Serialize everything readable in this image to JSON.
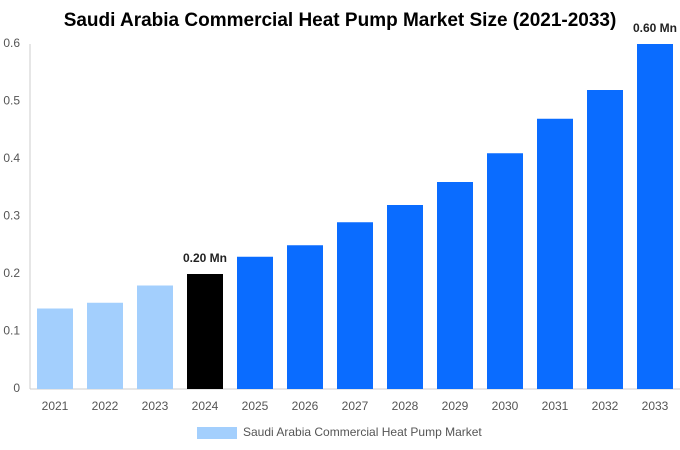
{
  "chart_data": {
    "type": "bar",
    "title": "Saudi Arabia Commercial Heat Pump Market Size (2021-2033)",
    "categories": [
      "2021",
      "2022",
      "2023",
      "2024",
      "2025",
      "2026",
      "2027",
      "2028",
      "2029",
      "2030",
      "2031",
      "2032",
      "2033"
    ],
    "series": [
      {
        "name": "Saudi Arabia Commercial Heat Pump Market",
        "color": "#a3cffd",
        "colors": [
          "#a3cffd",
          "#a3cffd",
          "#a3cffd",
          "#000000",
          "#0a6cff",
          "#0a6cff",
          "#0a6cff",
          "#0a6cff",
          "#0a6cff",
          "#0a6cff",
          "#0a6cff",
          "#0a6cff",
          "#0a6cff"
        ],
        "values": [
          0.14,
          0.15,
          0.18,
          0.2,
          0.23,
          0.25,
          0.29,
          0.32,
          0.36,
          0.41,
          0.47,
          0.52,
          0.6
        ],
        "value_labels": [
          null,
          null,
          null,
          "0.20 Mn",
          null,
          null,
          null,
          null,
          null,
          null,
          null,
          null,
          "0.60 Mn"
        ]
      }
    ],
    "ylim": [
      0,
      0.6
    ],
    "yticks": [
      0,
      0.1,
      0.2,
      0.3,
      0.4,
      0.5,
      0.6
    ],
    "grid": false
  }
}
